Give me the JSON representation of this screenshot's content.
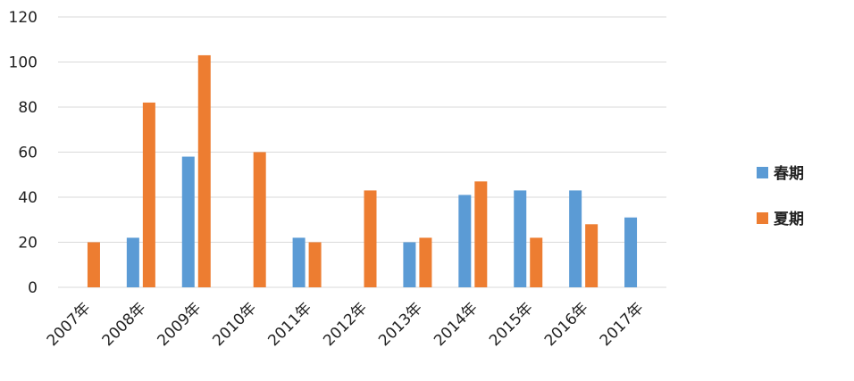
{
  "chart_data": {
    "type": "bar",
    "title": "",
    "xlabel": "",
    "ylabel": "",
    "ylim": [
      0,
      120
    ],
    "yticks": [
      0,
      20,
      40,
      60,
      80,
      100,
      120
    ],
    "grid": true,
    "legend_position": "right",
    "categories": [
      "2007年",
      "2008年",
      "2009年",
      "2010年",
      "2011年",
      "2012年",
      "2013年",
      "2014年",
      "2015年",
      "2016年",
      "2017年"
    ],
    "series": [
      {
        "name": "春期",
        "color": "#5b9bd5",
        "values": [
          null,
          22,
          58,
          null,
          22,
          null,
          20,
          41,
          43,
          43,
          31
        ]
      },
      {
        "name": "夏期",
        "color": "#ed7d31",
        "values": [
          20,
          82,
          103,
          60,
          20,
          43,
          22,
          47,
          22,
          28,
          null
        ]
      }
    ]
  }
}
